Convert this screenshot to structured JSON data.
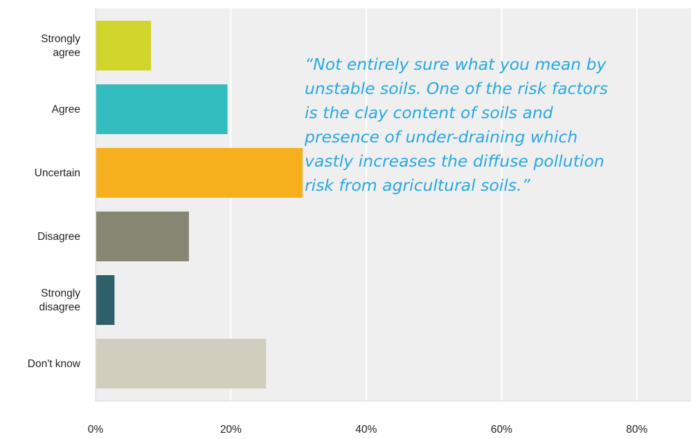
{
  "chart_data": {
    "type": "bar",
    "orientation": "horizontal",
    "categories": [
      "Strongly agree",
      "Agree",
      "Uncertain",
      "Disagree",
      "Strongly disagree",
      "Don't know"
    ],
    "category_label_lines": [
      [
        "Strongly",
        "agree"
      ],
      [
        "Agree"
      ],
      [
        "Uncertain"
      ],
      [
        "Disagree"
      ],
      [
        "Strongly",
        "disagree"
      ],
      [
        "Don't know"
      ]
    ],
    "values": [
      8.2,
      19.5,
      30.6,
      13.8,
      2.8,
      25.2
    ],
    "colors": [
      "#d1d42b",
      "#33bdbf",
      "#f6b01e",
      "#878672",
      "#2f5f6a",
      "#d1cebd"
    ],
    "x_ticks": [
      "0%",
      "20%",
      "40%",
      "60%",
      "80%"
    ],
    "x_tick_values": [
      0,
      20,
      40,
      60,
      80
    ],
    "xlim": [
      0,
      88
    ],
    "title": "",
    "xlabel": "",
    "ylabel": "",
    "grid": true,
    "background": "#efefef",
    "gridline_color": "#ffffff"
  },
  "annotation": {
    "lines": [
      "“Not entirely sure what you mean by",
      "unstable soils.  One of the risk factors",
      "is the clay content of soils and",
      "presence of under-draining which",
      "vastly increases the diffuse pollution",
      "risk from agricultural soils.”"
    ],
    "color": "#29a8e0"
  }
}
